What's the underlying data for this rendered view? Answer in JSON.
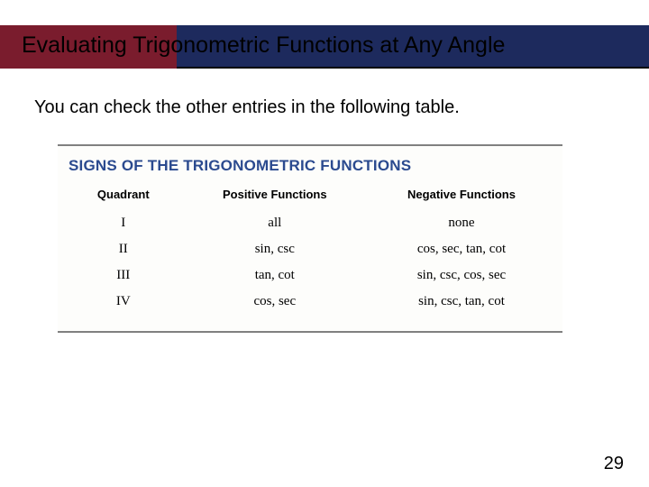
{
  "colors": {
    "title_left_bg": "#7a1c2d",
    "title_right_bg": "#1d2a5d",
    "title_text": "#000000",
    "body_text": "#000000",
    "card_bg": "#fdfdfb",
    "card_heading": "#2b4a8f",
    "table_header": "#000000",
    "table_text": "#000000"
  },
  "title": "Evaluating Trigonometric Functions at Any Angle",
  "body": "You can check the other entries in the following table.",
  "card": {
    "heading": "SIGNS OF THE TRIGONOMETRIC FUNCTIONS",
    "columns": [
      "Quadrant",
      "Positive Functions",
      "Negative Functions"
    ],
    "rows": [
      [
        "I",
        "all",
        "none"
      ],
      [
        "II",
        "sin, csc",
        "cos, sec, tan, cot"
      ],
      [
        "III",
        "tan, cot",
        "sin, csc, cos, sec"
      ],
      [
        "IV",
        "cos, sec",
        "sin, csc, tan, cot"
      ]
    ]
  },
  "page_number": "29"
}
